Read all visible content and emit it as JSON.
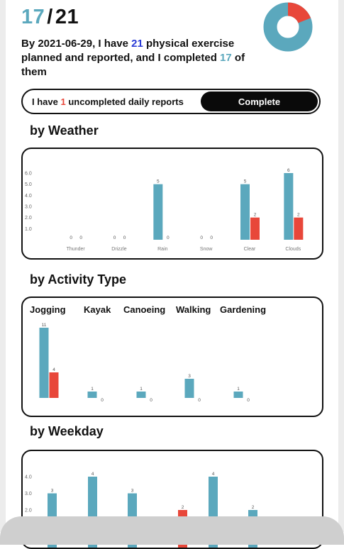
{
  "header": {
    "completed": "17",
    "separator": "/",
    "total": "21",
    "summary_part1": "By 2021-06-29, I have ",
    "summary_total": "21",
    "summary_part2": " physical exercise planned and reported, and I completed ",
    "summary_completed": "17",
    "summary_part3": " of them"
  },
  "donut": {
    "completed": 17,
    "total": 21,
    "color_done": "#5ba8bd",
    "color_left": "#e8473a"
  },
  "reports": {
    "prefix": "I have ",
    "count": "1",
    "suffix": " uncompleted daily reports",
    "button_label": "Complete"
  },
  "colors": {
    "planned": "#5ba8bd",
    "completed": "#e8473a"
  },
  "sections": {
    "weather": "by Weather",
    "activity": "by Activity Type",
    "weekday": "by Weekday"
  },
  "chart_data": [
    {
      "type": "bar",
      "categories": [
        "Thunder",
        "Drizzle",
        "Rain",
        "Snow",
        "Clear",
        "Clouds"
      ],
      "series": [
        {
          "values": [
            0,
            0,
            5,
            0,
            5,
            6
          ]
        },
        {
          "values": [
            0,
            0,
            0,
            0,
            2,
            2
          ]
        }
      ],
      "ylim": [
        0,
        6
      ],
      "yticks": [
        "1.0",
        "2.0",
        "3.0",
        "4.0",
        "5.0",
        "6.0"
      ]
    },
    {
      "type": "bar",
      "categories": [
        "Jogging",
        "Kayak",
        "Canoeing",
        "Walking",
        "Gardening"
      ],
      "series": [
        {
          "values": [
            11,
            1,
            1,
            3,
            1
          ]
        },
        {
          "values": [
            4,
            0,
            0,
            0,
            0
          ]
        }
      ],
      "ylim": [
        0,
        11
      ],
      "legend": "top"
    },
    {
      "type": "bar",
      "series": [
        {
          "values": [
            3,
            4,
            3,
            0,
            4,
            2
          ]
        },
        {
          "values": [
            0,
            0,
            0,
            2,
            0,
            0
          ]
        }
      ],
      "yticks": [
        "2.0",
        "3.0",
        "4.0"
      ]
    }
  ]
}
